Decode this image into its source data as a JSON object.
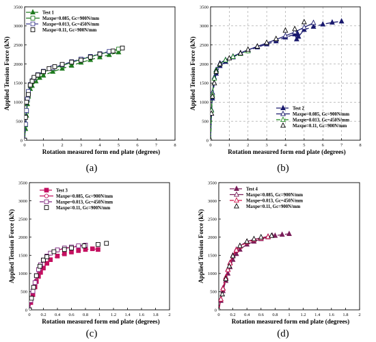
{
  "x_axis_title": "Rotation measured form end plate (degrees)",
  "y_axis_title": "Applied Tension Force (kN)",
  "chart_data": [
    {
      "type": "line",
      "panel_label": "(a)",
      "xlabel": "Rotation measured form end plate (degrees)",
      "ylabel": "Applied Tension Force (kN)",
      "xlim": [
        0,
        8
      ],
      "ylim": [
        0,
        3500
      ],
      "xticks": [
        0,
        1,
        2,
        3,
        4,
        5,
        6,
        7,
        8
      ],
      "yticks": [
        0,
        500,
        1000,
        1500,
        2000,
        2500,
        3000,
        3500
      ],
      "grid": false,
      "legend_position": "top-left",
      "series": [
        {
          "name": "Test 1",
          "color": "#1e7a1e",
          "dash": "7,4",
          "marker": "triangle-filled",
          "x": [
            0,
            0.05,
            0.1,
            0.15,
            0.2,
            0.3,
            0.4,
            0.6,
            0.8,
            1.0,
            1.5,
            2.0,
            2.5,
            3.0,
            3.5,
            4.0,
            4.5,
            5.0
          ],
          "y": [
            0,
            300,
            650,
            950,
            1150,
            1350,
            1430,
            1550,
            1640,
            1700,
            1800,
            1880,
            1960,
            2040,
            2110,
            2180,
            2240,
            2310
          ]
        },
        {
          "name": "Maxpe=0.085, Gc=900N/mm",
          "color": "#1e7a1e",
          "dash": "",
          "marker": "square-open",
          "x": [
            0,
            0.05,
            0.1,
            0.15,
            0.2,
            0.3,
            0.4,
            0.5,
            0.7,
            1.0,
            1.5,
            2.0,
            2.5,
            3.0,
            3.5,
            4.0,
            4.5,
            5.0
          ],
          "y": [
            0,
            400,
            750,
            1050,
            1250,
            1430,
            1530,
            1600,
            1700,
            1790,
            1880,
            1960,
            2040,
            2120,
            2190,
            2260,
            2320,
            2390
          ]
        },
        {
          "name": "Maxpe=0.013, Gc=450N/mm",
          "color": "#3a3a8c",
          "dash": "6,2,2,2",
          "marker": "square-open",
          "x": [
            0,
            0.05,
            0.1,
            0.15,
            0.2,
            0.3,
            0.4,
            0.5,
            0.7,
            1.0,
            1.5,
            2.0,
            2.5,
            3.0,
            3.5,
            4.0,
            4.5
          ],
          "y": [
            0,
            420,
            780,
            1080,
            1280,
            1460,
            1560,
            1630,
            1720,
            1810,
            1900,
            1980,
            2060,
            2130,
            2200,
            2270,
            2330
          ]
        },
        {
          "name": "Maxpe=0.11, Gc=900N/mm",
          "color": "#000000",
          "dash": "none",
          "marker": "square-open",
          "x": [
            0,
            0.05,
            0.1,
            0.2,
            0.3,
            0.4,
            0.5,
            0.7,
            1.0,
            1.3,
            1.6,
            2.0,
            2.5,
            3.0,
            3.5,
            4.0,
            4.7,
            5.2
          ],
          "y": [
            0,
            600,
            1000,
            1200,
            1450,
            1550,
            1650,
            1710,
            1800,
            1880,
            1930,
            1990,
            2050,
            2100,
            2180,
            2260,
            2340,
            2420
          ]
        }
      ]
    },
    {
      "type": "line",
      "panel_label": "(b)",
      "xlabel": "Rotation measured form end plate (degrees)",
      "ylabel": "Applied Tension Force (kN)",
      "xlim": [
        0,
        8
      ],
      "ylim": [
        0,
        3500
      ],
      "xticks": [
        0,
        1,
        2,
        3,
        4,
        5,
        6,
        7,
        8
      ],
      "yticks": [
        0,
        500,
        1000,
        1500,
        2000,
        2500,
        3000,
        3500
      ],
      "grid": true,
      "legend_position": "bottom-right",
      "series": [
        {
          "name": "Test 2",
          "color": "#1a1a6e",
          "dash": "7,4",
          "marker": "triangle-filled",
          "x": [
            0,
            0.05,
            0.1,
            0.2,
            0.3,
            0.5,
            0.8,
            1.2,
            1.6,
            2.0,
            2.5,
            3.0,
            3.5,
            4.0,
            4.5,
            4.6,
            4.65,
            4.7,
            5.0,
            5.5,
            6.0,
            6.5,
            7.0
          ],
          "y": [
            0,
            700,
            1100,
            1500,
            1750,
            1950,
            2060,
            2180,
            2280,
            2360,
            2440,
            2520,
            2600,
            2700,
            2780,
            2650,
            2800,
            2720,
            2900,
            2980,
            3040,
            3090,
            3120
          ]
        },
        {
          "name": "Maxpe=0.085, Gc=900N/mm",
          "color": "#1a1a6e",
          "dash": "",
          "marker": "triangle-open",
          "x": [
            0,
            0.05,
            0.1,
            0.2,
            0.3,
            0.5,
            0.8,
            1.2,
            1.6,
            2.0,
            2.5,
            3.0,
            3.5,
            4.0,
            4.5,
            5.0,
            5.5
          ],
          "y": [
            0,
            800,
            1250,
            1650,
            1850,
            2020,
            2110,
            2200,
            2290,
            2370,
            2460,
            2550,
            2640,
            2740,
            2840,
            2960,
            3080
          ]
        },
        {
          "name": "Maxpe=0.013, Gc=450N/mm",
          "color": "#1e8a1e",
          "dash": "6,2,2,2",
          "marker": "triangle-open",
          "x": [
            0,
            0.05,
            0.1,
            0.2,
            0.3,
            0.5,
            0.8,
            1.2,
            1.6,
            2.0
          ],
          "y": [
            0,
            780,
            1200,
            1620,
            1830,
            2000,
            2100,
            2190,
            2270,
            2340
          ]
        },
        {
          "name": "Maxpe=0.11, Gc=900N/mm",
          "color": "#000000",
          "dash": "none",
          "marker": "triangle-open",
          "x": [
            0,
            0.05,
            0.1,
            0.2,
            0.3,
            0.5,
            1.0,
            1.6,
            2.0,
            2.5,
            3.0,
            3.5,
            4.0,
            4.5,
            5.0
          ],
          "y": [
            0,
            700,
            1150,
            1500,
            1800,
            2000,
            2150,
            2280,
            2380,
            2460,
            2560,
            2660,
            2880,
            2920,
            3100
          ]
        }
      ]
    },
    {
      "type": "line",
      "panel_label": "(c)",
      "xlabel": "Rotation measured form end plate (degrees)",
      "ylabel": "Applied Tension Force (kN)",
      "xlim": [
        0,
        2
      ],
      "ylim": [
        0,
        3500
      ],
      "xticks": [
        0,
        0.2,
        0.4,
        0.6,
        0.8,
        1,
        1.2,
        1.4,
        1.6,
        1.8,
        2
      ],
      "yticks": [
        0,
        500,
        1000,
        1500,
        2000,
        2500,
        3000,
        3500
      ],
      "grid": false,
      "legend_position": "top-left",
      "series": [
        {
          "name": "Test 3",
          "color": "#c41060",
          "dash": "7,4",
          "marker": "square-filled",
          "x": [
            0,
            0.02,
            0.05,
            0.08,
            0.1,
            0.13,
            0.16,
            0.2,
            0.25,
            0.3,
            0.4,
            0.5,
            0.6,
            0.7,
            0.8,
            0.9,
            0.98
          ],
          "y": [
            0,
            200,
            420,
            630,
            780,
            920,
            1030,
            1150,
            1280,
            1380,
            1480,
            1540,
            1590,
            1630,
            1660,
            1680,
            1660
          ]
        },
        {
          "name": "Maxpe=0.085, Gc=900N/mm",
          "color": "#c41060",
          "dash": "",
          "marker": "circle-open",
          "x": [
            0,
            0.02,
            0.05,
            0.08,
            0.1,
            0.13,
            0.16,
            0.2,
            0.25,
            0.3,
            0.4,
            0.5,
            0.6,
            0.7,
            0.8
          ],
          "y": [
            0,
            250,
            500,
            740,
            930,
            1100,
            1230,
            1360,
            1470,
            1550,
            1640,
            1690,
            1720,
            1750,
            1770
          ]
        },
        {
          "name": "Maxpe=0.013, Gc=450N/mm",
          "color": "#7a1e7a",
          "dash": "6,2,2,2",
          "marker": "square-open",
          "x": [
            0,
            0.02,
            0.05,
            0.08,
            0.1,
            0.13,
            0.16,
            0.2,
            0.25,
            0.3,
            0.4,
            0.5,
            0.6,
            0.7,
            0.8
          ],
          "y": [
            0,
            260,
            510,
            750,
            940,
            1110,
            1240,
            1370,
            1480,
            1560,
            1650,
            1700,
            1730,
            1760,
            1780
          ]
        },
        {
          "name": "Maxpe=0.11, Gc=900N/mm",
          "color": "#000000",
          "dash": "none",
          "marker": "square-open",
          "x": [
            0,
            0.03,
            0.06,
            0.1,
            0.15,
            0.2,
            0.25,
            0.35,
            0.5,
            0.6,
            0.78,
            0.98,
            1.1
          ],
          "y": [
            0,
            320,
            620,
            940,
            1200,
            1370,
            1460,
            1600,
            1660,
            1700,
            1760,
            1800,
            1830
          ]
        }
      ]
    },
    {
      "type": "line",
      "panel_label": "(d)",
      "xlabel": "Rotation measured form end plate (degrees)",
      "ylabel": "Applied Tension Force (kN)",
      "xlim": [
        0,
        2
      ],
      "ylim": [
        0,
        3500
      ],
      "xticks": [
        0,
        0.2,
        0.4,
        0.6,
        0.8,
        1,
        1.2,
        1.4,
        1.6,
        1.8,
        2
      ],
      "yticks": [
        0,
        500,
        1000,
        1500,
        2000,
        2500,
        3000,
        3500
      ],
      "grid": false,
      "legend_position": "top-left",
      "series": [
        {
          "name": "Test 4",
          "color": "#7a1e5a",
          "dash": "7,4",
          "marker": "triangle-filled",
          "x": [
            0,
            0.03,
            0.06,
            0.1,
            0.13,
            0.16,
            0.2,
            0.25,
            0.3,
            0.4,
            0.5,
            0.6,
            0.7,
            0.8,
            0.9,
            1.0
          ],
          "y": [
            0,
            250,
            520,
            800,
            1000,
            1180,
            1380,
            1540,
            1660,
            1800,
            1880,
            1950,
            2000,
            2040,
            2070,
            2090
          ]
        },
        {
          "name": "Maxpe=0.085, Gc=900N/mm",
          "color": "#7a1e5a",
          "dash": "",
          "marker": "triangle-open",
          "x": [
            0,
            0.03,
            0.06,
            0.1,
            0.13,
            0.16,
            0.2,
            0.25,
            0.3,
            0.4,
            0.5,
            0.6,
            0.7,
            0.76
          ],
          "y": [
            0,
            300,
            600,
            900,
            1120,
            1300,
            1500,
            1660,
            1760,
            1880,
            1940,
            1980,
            2020,
            2040
          ]
        },
        {
          "name": "Maxpe=0.013, Gc=450N/mm",
          "color": "#d0104a",
          "dash": "6,2,2,2",
          "marker": "triangle-open",
          "x": [
            0,
            0.03,
            0.06,
            0.1,
            0.13,
            0.16,
            0.2,
            0.25,
            0.3,
            0.4,
            0.5,
            0.6,
            0.7
          ],
          "y": [
            0,
            290,
            580,
            880,
            1100,
            1280,
            1480,
            1640,
            1740,
            1860,
            1930,
            1970,
            2010
          ]
        },
        {
          "name": "Maxpe=0.11, Gc=900N/mm",
          "color": "#000000",
          "dash": "none",
          "marker": "triangle-open",
          "x": [
            0,
            0.05,
            0.1,
            0.15,
            0.2,
            0.3,
            0.4,
            0.5,
            0.6,
            0.75
          ],
          "y": [
            0,
            430,
            850,
            1200,
            1480,
            1760,
            1880,
            1950,
            2000,
            2040
          ]
        }
      ]
    }
  ]
}
